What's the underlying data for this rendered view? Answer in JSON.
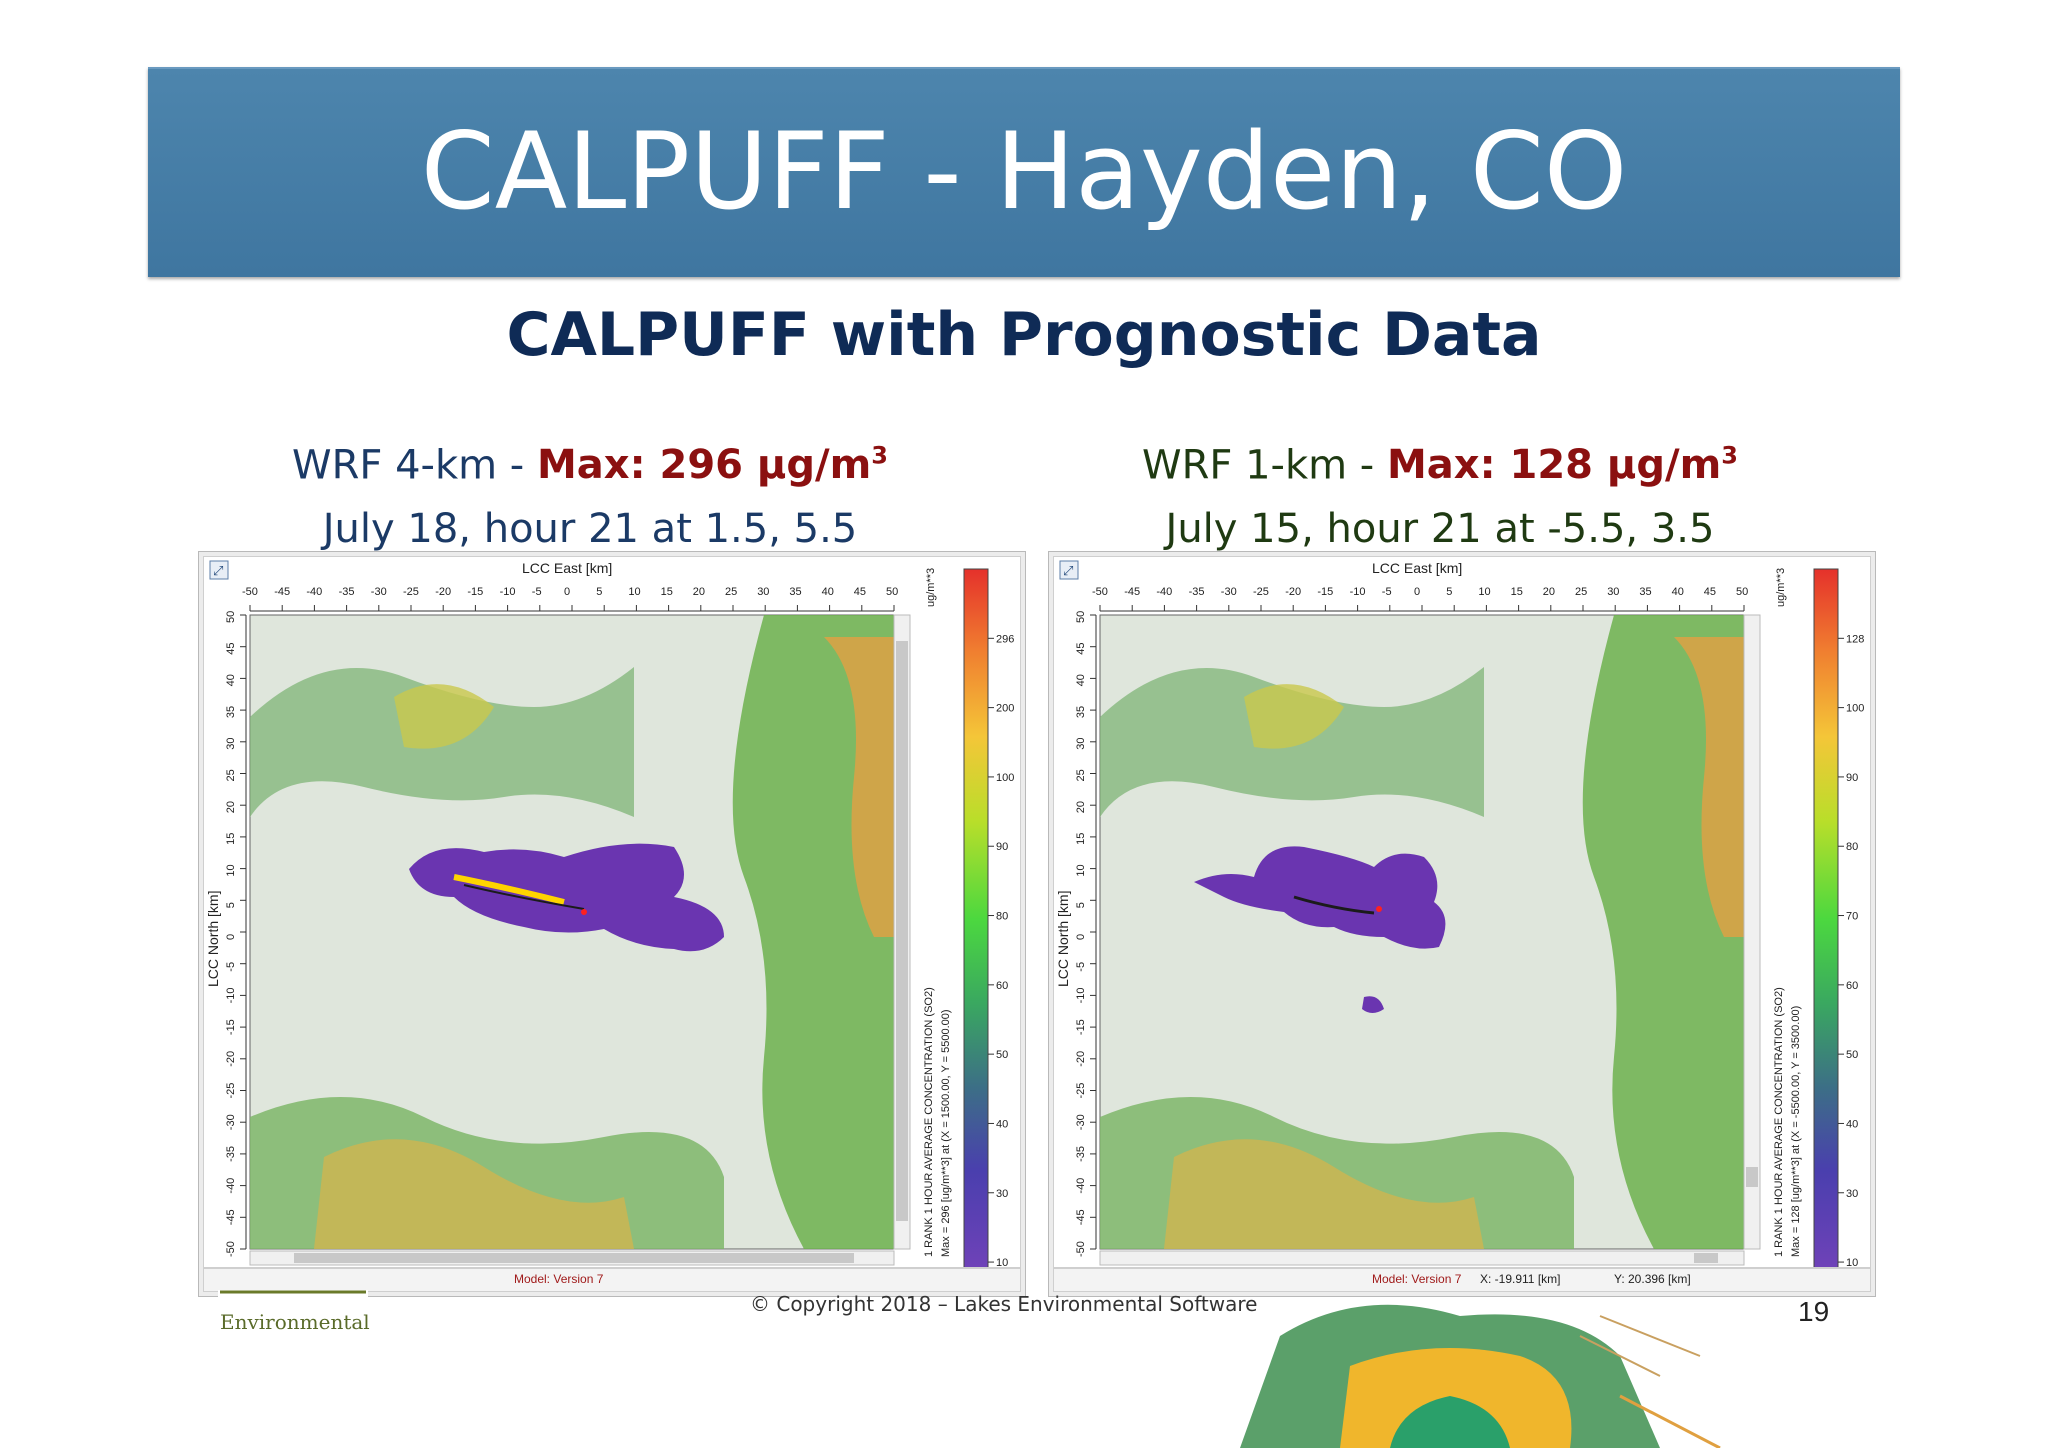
{
  "slide": {
    "title": "CALPUFF - Hayden, CO",
    "subtitle": "CALPUFF with Prognostic Data",
    "footer": "© Copyright 2018 – Lakes Environmental Software",
    "page_number": "19",
    "logo_text": "Environmental"
  },
  "colors": {
    "banner": "#4a82aa",
    "subtitle": "#0f2b56",
    "left_caption": "#1b3a66",
    "right_caption": "#1f3a12",
    "max_text": "#8b1010"
  },
  "panels": [
    {
      "caption_prefix": "WRF 4-km - ",
      "caption_max": "Max: 296 µg/m",
      "caption_sup": "3",
      "caption_line2": "July 18, hour 21 at 1.5, 5.5",
      "x_axis_title": "LCC East [km]",
      "y_axis_title": "LCC North [km]",
      "x_ticks": [
        "-50",
        "-45",
        "-40",
        "-35",
        "-30",
        "-25",
        "-20",
        "-15",
        "-10",
        "-5",
        "0",
        "5",
        "10",
        "15",
        "20",
        "25",
        "30",
        "35",
        "40",
        "45",
        "50"
      ],
      "y_ticks": [
        "50",
        "45",
        "40",
        "35",
        "30",
        "25",
        "20",
        "15",
        "10",
        "5",
        "0",
        "-5",
        "-10",
        "-15",
        "-20",
        "-25",
        "-30",
        "-35",
        "-40",
        "-45",
        "-50"
      ],
      "legend_unit": "ug/m**3",
      "legend_labels": [
        "296",
        "200",
        "100",
        "90",
        "80",
        "60",
        "50",
        "40",
        "30",
        "10"
      ],
      "legend_note": "1 RANK 1 HOUR AVERAGE CONCENTRATION (SO2)",
      "legend_note2": "Max = 296 [ug/m**3] at (X = 1500.00, Y = 5500.00)",
      "status_model": "Model: Version 7",
      "status_x": "",
      "status_y": ""
    },
    {
      "caption_prefix": "WRF 1-km - ",
      "caption_max": "Max: 128 µg/m",
      "caption_sup": "3",
      "caption_line2": "July 15, hour 21 at -5.5, 3.5",
      "x_axis_title": "LCC East [km]",
      "y_axis_title": "LCC North [km]",
      "x_ticks": [
        "-50",
        "-45",
        "-40",
        "-35",
        "-30",
        "-25",
        "-20",
        "-15",
        "-10",
        "-5",
        "0",
        "5",
        "10",
        "15",
        "20",
        "25",
        "30",
        "35",
        "40",
        "45",
        "50"
      ],
      "y_ticks": [
        "50",
        "45",
        "40",
        "35",
        "30",
        "25",
        "20",
        "15",
        "10",
        "5",
        "0",
        "-5",
        "-10",
        "-15",
        "-20",
        "-25",
        "-30",
        "-35",
        "-40",
        "-45",
        "-50"
      ],
      "legend_unit": "ug/m**3",
      "legend_labels": [
        "128",
        "100",
        "90",
        "80",
        "70",
        "60",
        "50",
        "40",
        "30",
        "10"
      ],
      "legend_note": "1 RANK 1 HOUR AVERAGE CONCENTRATION (SO2)",
      "legend_note2": "Max = 128 [ug/m**3] at (X = -5500.00, Y = 3500.00)",
      "status_model": "Model: Version 7",
      "status_x": "X: -19.911 [km]",
      "status_y": "Y: 20.396 [km]"
    }
  ]
}
